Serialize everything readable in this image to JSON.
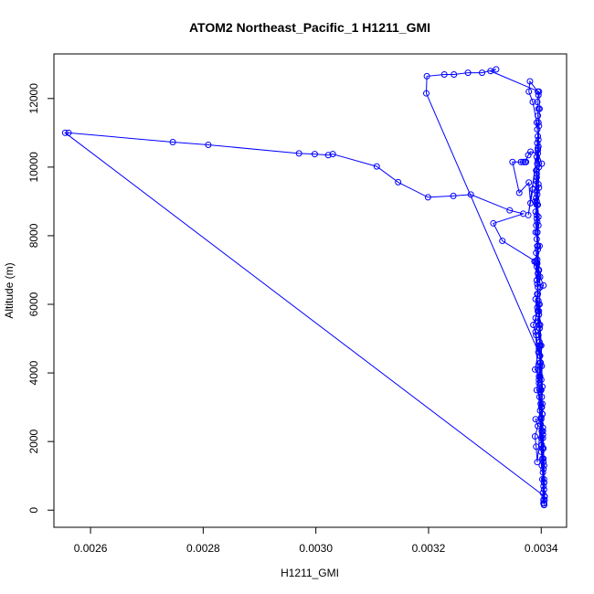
{
  "chart_data": {
    "type": "line",
    "title": "ATOM2 Northeast_Pacific_1 H1211_GMI",
    "xlabel": "H1211_GMI",
    "ylabel": "Altitude (m)",
    "xlim": [
      0.002535,
      0.003445
    ],
    "ylim": [
      -500,
      13300
    ],
    "x_ticks": [
      0.0026,
      0.0028,
      0.003,
      0.0032,
      0.0034
    ],
    "x_tick_labels": [
      "0.0026",
      "0.0028",
      "0.0030",
      "0.0032",
      "0.0034"
    ],
    "y_ticks": [
      0,
      2000,
      4000,
      6000,
      8000,
      10000,
      12000
    ],
    "y_tick_labels": [
      "0",
      "2000",
      "4000",
      "6000",
      "8000",
      "10000",
      "12000"
    ],
    "marker": "open-circle",
    "series_color": "#0000ff",
    "grid": false,
    "legend": "none",
    "series": [
      {
        "points": [
          [
            0.003405,
            150
          ],
          [
            0.003404,
            300
          ],
          [
            0.003403,
            500
          ],
          [
            0.003404,
            700
          ],
          [
            0.003402,
            900
          ],
          [
            0.003403,
            1100
          ],
          [
            0.003401,
            1300
          ],
          [
            0.003402,
            1500
          ],
          [
            0.0034,
            1700
          ],
          [
            0.003401,
            1900
          ],
          [
            0.0034,
            2100
          ],
          [
            0.003401,
            2300
          ],
          [
            0.003399,
            2500
          ],
          [
            0.0034,
            2700
          ],
          [
            0.003398,
            2900
          ],
          [
            0.003399,
            3100
          ],
          [
            0.003397,
            3300
          ],
          [
            0.003399,
            3500
          ],
          [
            0.003396,
            3700
          ],
          [
            0.003398,
            3900
          ],
          [
            0.003396,
            4100
          ],
          [
            0.003398,
            4300
          ],
          [
            0.003397,
            4500
          ],
          [
            0.003396,
            4700
          ],
          [
            0.003397,
            4900
          ],
          [
            0.003395,
            5100
          ],
          [
            0.003397,
            5300
          ],
          [
            0.003394,
            5500
          ],
          [
            0.003396,
            5700
          ],
          [
            0.003393,
            5900
          ],
          [
            0.003395,
            6100
          ],
          [
            0.003393,
            6300
          ],
          [
            0.003394,
            6500
          ],
          [
            0.003392,
            6700
          ],
          [
            0.003394,
            6900
          ],
          [
            0.003392,
            7100
          ],
          [
            0.003393,
            7300
          ],
          [
            0.003391,
            7500
          ],
          [
            0.003393,
            7700
          ],
          [
            0.003392,
            7900
          ],
          [
            0.003393,
            8100
          ],
          [
            0.003391,
            8300
          ],
          [
            0.003392,
            8500
          ],
          [
            0.00339,
            8700
          ],
          [
            0.003392,
            8900
          ],
          [
            0.003391,
            9100
          ],
          [
            0.003392,
            9300
          ],
          [
            0.00339,
            9500
          ],
          [
            0.003392,
            9700
          ],
          [
            0.003391,
            9900
          ],
          [
            0.003393,
            10100
          ],
          [
            0.003392,
            10300
          ],
          [
            0.003394,
            10500
          ],
          [
            0.003393,
            10700
          ],
          [
            0.003394,
            10900
          ],
          [
            0.003393,
            11100
          ],
          [
            0.003395,
            11300
          ],
          [
            0.003394,
            11500
          ],
          [
            0.003395,
            11700
          ],
          [
            0.003393,
            11900
          ],
          [
            0.003395,
            12100
          ],
          [
            0.003394,
            12200
          ],
          [
            0.00338,
            12500
          ],
          [
            0.003378,
            12200
          ],
          [
            0.003385,
            11900
          ],
          [
            0.003392,
            11300
          ],
          [
            0.003395,
            10800
          ],
          [
            0.003394,
            10200
          ],
          [
            0.003391,
            9600
          ],
          [
            0.003392,
            9000
          ],
          [
            0.003393,
            8400
          ],
          [
            0.003394,
            7700
          ],
          [
            0.003396,
            7000
          ],
          [
            0.003398,
            6500
          ],
          [
            0.003397,
            6000
          ],
          [
            0.003398,
            5400
          ],
          [
            0.0034,
            4800
          ],
          [
            0.003401,
            4200
          ],
          [
            0.003402,
            3600
          ],
          [
            0.003401,
            3000
          ],
          [
            0.003403,
            2400
          ],
          [
            0.003402,
            1800
          ],
          [
            0.003404,
            1200
          ],
          [
            0.003405,
            600
          ],
          [
            0.003404,
            200
          ],
          [
            0.0034,
            2650
          ],
          [
            0.00339,
            2650
          ],
          [
            0.003394,
            2450
          ],
          [
            0.003389,
            2150
          ],
          [
            0.003391,
            1850
          ],
          [
            0.003393,
            1400
          ],
          [
            0.003402,
            3100
          ],
          [
            0.003392,
            3500
          ],
          [
            0.003396,
            3900
          ],
          [
            0.003389,
            4100
          ],
          [
            0.003395,
            4600
          ],
          [
            0.003391,
            5100
          ],
          [
            0.003386,
            5400
          ],
          [
            0.003394,
            5800
          ],
          [
            0.00339,
            6150
          ],
          [
            0.003404,
            6550
          ],
          [
            0.003398,
            6800
          ],
          [
            0.003392,
            7200
          ],
          [
            0.003388,
            7250
          ],
          [
            0.003397,
            7700
          ],
          [
            0.00339,
            8100
          ],
          [
            0.003395,
            8550
          ],
          [
            0.003389,
            9000
          ],
          [
            0.003396,
            9400
          ],
          [
            0.003392,
            9900
          ],
          [
            0.003401,
            10100
          ],
          [
            0.003394,
            10400
          ],
          [
            0.003381,
            10450
          ],
          [
            0.003377,
            10350
          ],
          [
            0.003371,
            10150
          ],
          [
            0.003368,
            10150
          ],
          [
            0.003373,
            10150
          ],
          [
            0.003364,
            10150
          ],
          [
            0.003349,
            10150
          ],
          [
            0.003361,
            9250
          ],
          [
            0.003378,
            9550
          ],
          [
            0.003381,
            8950
          ],
          [
            0.003385,
            9350
          ],
          [
            0.003377,
            8600
          ],
          [
            0.003394,
            10550
          ],
          [
            0.003392,
            9800
          ],
          [
            0.003393,
            9200
          ],
          [
            0.003392,
            8600
          ],
          [
            0.003393,
            8100
          ],
          [
            0.003394,
            7600
          ],
          [
            0.003393,
            7200
          ],
          [
            0.003395,
            6800
          ],
          [
            0.003394,
            6300
          ],
          [
            0.003396,
            5800
          ],
          [
            0.003397,
            5300
          ],
          [
            0.003398,
            4800
          ],
          [
            0.003399,
            4300
          ],
          [
            0.0034,
            3800
          ],
          [
            0.003401,
            3300
          ],
          [
            0.003402,
            2800
          ],
          [
            0.003403,
            2300
          ],
          [
            0.003404,
            1800
          ],
          [
            0.003405,
            1300
          ],
          [
            0.003405,
            800
          ],
          [
            0.003406,
            400
          ],
          [
            0.003405,
            200
          ],
          [
            0.00339,
            5200
          ],
          [
            0.00339,
            5600
          ],
          [
            0.003393,
            6300
          ],
          [
            0.003395,
            7000
          ],
          [
            0.003394,
            7700
          ],
          [
            0.003395,
            8300
          ],
          [
            0.003394,
            8900
          ],
          [
            0.003395,
            9500
          ],
          [
            0.003396,
            10000
          ],
          [
            0.003395,
            10600
          ],
          [
            0.003396,
            11200
          ],
          [
            0.003397,
            11700
          ],
          [
            0.003396,
            12200
          ],
          [
            0.00331,
            12800
          ],
          [
            0.00332,
            12850
          ],
          [
            0.003295,
            12750
          ],
          [
            0.00327,
            12750
          ],
          [
            0.003245,
            12700
          ],
          [
            0.003228,
            12700
          ],
          [
            0.003197,
            12650
          ],
          [
            0.003196,
            12150
          ],
          [
            0.003398,
            4500
          ],
          [
            0.003396,
            3800
          ],
          [
            0.0034,
            3000
          ],
          [
            0.003403,
            2200
          ],
          [
            0.003404,
            1500
          ],
          [
            0.003405,
            900
          ],
          [
            0.003406,
            400
          ],
          [
            0.002555,
            11000
          ],
          [
            0.002561,
            11000
          ],
          [
            0.002746,
            10730
          ],
          [
            0.002809,
            10650
          ],
          [
            0.00297,
            10400
          ],
          [
            0.002998,
            10380
          ],
          [
            0.003022,
            10350
          ],
          [
            0.00303,
            10380
          ],
          [
            0.003108,
            10020
          ],
          [
            0.003146,
            9560
          ],
          [
            0.003199,
            9120
          ],
          [
            0.003244,
            9160
          ],
          [
            0.003275,
            9200
          ],
          [
            0.003344,
            8740
          ],
          [
            0.003368,
            8640
          ],
          [
            0.003315,
            8360
          ],
          [
            0.003331,
            7850
          ],
          [
            0.00339,
            7250
          ],
          [
            0.003393,
            6600
          ],
          [
            0.003395,
            6000
          ],
          [
            0.003396,
            5400
          ],
          [
            0.003397,
            4800
          ],
          [
            0.003398,
            4200
          ],
          [
            0.0034,
            3500
          ],
          [
            0.003402,
            2800
          ],
          [
            0.003403,
            2100
          ],
          [
            0.003404,
            1400
          ],
          [
            0.003405,
            800
          ],
          [
            0.003406,
            300
          ],
          [
            0.003405,
            150
          ]
        ]
      }
    ]
  }
}
